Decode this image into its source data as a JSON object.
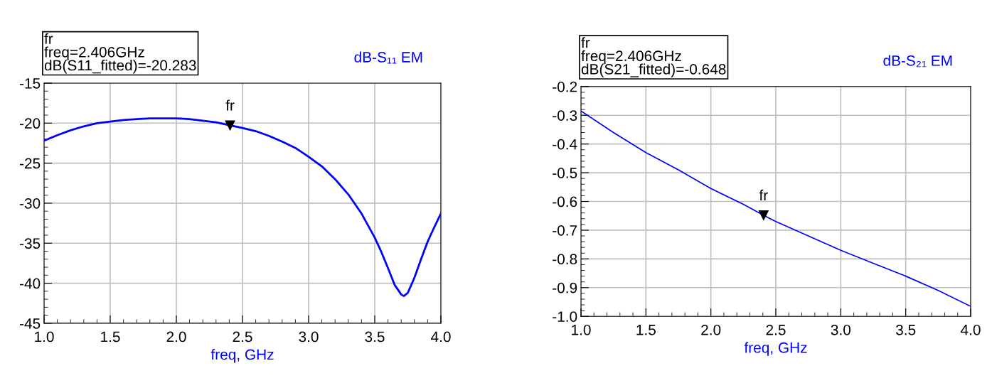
{
  "chart_data": [
    {
      "type": "line",
      "xlabel": "freq, GHz",
      "xlim": [
        1.0,
        4.0
      ],
      "xticks": [
        {
          "value": 1.0,
          "label": "1.0"
        },
        1.5,
        {
          "value": 2.0,
          "label": "2.0"
        },
        2.5,
        {
          "value": 3.0,
          "label": "3.0"
        },
        3.5,
        {
          "value": 4.0,
          "label": "4.0"
        }
      ],
      "ylim": [
        -45,
        -15
      ],
      "yticks": [
        -45,
        -40,
        -35,
        -30,
        -25,
        -20,
        -15
      ],
      "grid": true,
      "legend": "top right",
      "marker": "none",
      "line_style": "solid",
      "annotations": [
        "fr\nfreq=2.406GHz\ndB(S11_fitted)=-20.283",
        {
          "text": "fr",
          "x": 2.406,
          "y": -20.283
        }
      ],
      "series": [
        {
          "name": "dB-S₁₁ EM",
          "color": "#0000ff",
          "x": [
            1.0,
            1.1,
            1.2,
            1.3,
            1.4,
            1.5,
            1.6,
            1.7,
            1.8,
            1.9,
            2.0,
            2.1,
            2.2,
            2.3,
            2.406,
            2.5,
            2.6,
            2.7,
            2.8,
            2.9,
            3.0,
            3.1,
            3.2,
            3.3,
            3.4,
            3.5,
            3.55,
            3.6,
            3.65,
            3.7,
            3.72,
            3.75,
            3.8,
            3.85,
            3.9,
            3.95,
            4.0
          ],
          "values": [
            -22.2,
            -21.5,
            -20.9,
            -20.4,
            -20.0,
            -19.8,
            -19.6,
            -19.5,
            -19.4,
            -19.4,
            -19.4,
            -19.5,
            -19.7,
            -19.9,
            -20.283,
            -20.6,
            -21.0,
            -21.6,
            -22.3,
            -23.1,
            -24.2,
            -25.4,
            -27.0,
            -28.9,
            -31.3,
            -34.3,
            -36.1,
            -38.1,
            -40.2,
            -41.4,
            -41.6,
            -41.2,
            -39.3,
            -37.0,
            -34.8,
            -33.0,
            -31.3
          ]
        }
      ]
    },
    {
      "type": "line",
      "xlabel": "freq, GHz",
      "xlim": [
        1.0,
        4.0
      ],
      "xticks": [
        {
          "value": 1.0,
          "label": "1.0"
        },
        1.5,
        {
          "value": 2.0,
          "label": "2.0"
        },
        2.5,
        {
          "value": 3.0,
          "label": "3.0"
        },
        3.5,
        {
          "value": 4.0,
          "label": "4.0"
        }
      ],
      "ylim": [
        -1.0,
        -0.2
      ],
      "yticks": [
        {
          "value": -1.0,
          "label": "-1.0"
        },
        {
          "value": -0.9,
          "label": "-0.9"
        },
        {
          "value": -0.8,
          "label": "-0.8"
        },
        {
          "value": -0.7,
          "label": "-0.7"
        },
        {
          "value": -0.6,
          "label": "-0.6"
        },
        {
          "value": -0.5,
          "label": "-0.5"
        },
        {
          "value": -0.4,
          "label": "-0.4"
        },
        {
          "value": -0.3,
          "label": "-0.3"
        },
        {
          "value": -0.2,
          "label": "-0.2"
        }
      ],
      "grid": true,
      "legend": "top right",
      "marker": "none",
      "line_style": "solid",
      "annotations": [
        "fr\nfreq=2.406GHz\ndB(S21_fitted)=-0.648",
        {
          "text": "fr",
          "x": 2.406,
          "y": -0.648
        }
      ],
      "series": [
        {
          "name": "dB-S₂₁ EM",
          "color": "#0000ff",
          "x": [
            1.0,
            1.25,
            1.5,
            1.75,
            2.0,
            2.25,
            2.406,
            2.5,
            2.75,
            3.0,
            3.25,
            3.5,
            3.75,
            4.0
          ],
          "values": [
            -0.285,
            -0.36,
            -0.43,
            -0.49,
            -0.555,
            -0.61,
            -0.648,
            -0.67,
            -0.72,
            -0.77,
            -0.815,
            -0.86,
            -0.91,
            -0.965
          ]
        }
      ]
    }
  ]
}
